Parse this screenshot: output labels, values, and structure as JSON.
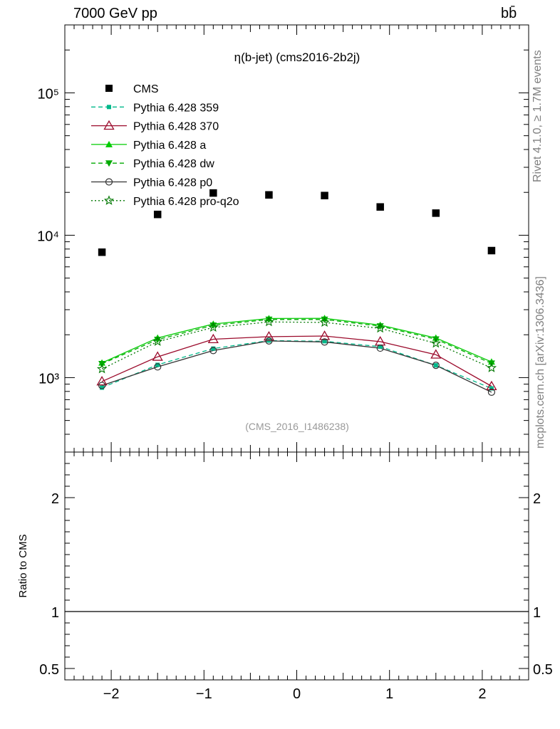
{
  "header": {
    "energy_label": "7000 GeV pp",
    "process_label": "bb̄"
  },
  "side_labels": {
    "rivet": "Rivet 4.1.0, ≥ 1.7M events",
    "mcplots": "mcplots.cern.ch [arXiv:1306.3436]"
  },
  "chart_data": [
    {
      "type": "scatter",
      "title": "η(b-jet) (cms2016-2b2j)",
      "watermark": "(CMS_2016_I1486238)",
      "xlabel": "",
      "ylabel": "",
      "xlim": [
        -2.5,
        2.5
      ],
      "ylim": [
        300,
        300000
      ],
      "yscale": "log",
      "yticks_major": [
        {
          "value": 1000,
          "label": "10³"
        },
        {
          "value": 10000,
          "label": "10⁴"
        },
        {
          "value": 100000,
          "label": "10⁵"
        }
      ],
      "x": [
        -2.1,
        -1.5,
        -0.9,
        -0.3,
        0.3,
        0.9,
        1.5,
        2.1
      ],
      "legend_position": "top-left",
      "series": [
        {
          "name": "CMS",
          "color": "#000000",
          "marker": "square",
          "line": "none",
          "values": [
            7600,
            14000,
            19800,
            19200,
            19000,
            15800,
            14300,
            7800
          ]
        },
        {
          "name": "Pythia 6.428 359",
          "color": "#00b88a",
          "marker": "small-square",
          "line": "dashed",
          "values": [
            850,
            1230,
            1600,
            1820,
            1800,
            1650,
            1220,
            840
          ]
        },
        {
          "name": "Pythia 6.428 370",
          "color": "#9b0a2b",
          "marker": "open-triangle",
          "line": "solid",
          "values": [
            940,
            1400,
            1860,
            1940,
            1960,
            1790,
            1450,
            870
          ]
        },
        {
          "name": "Pythia 6.428 a",
          "color": "#00cc00",
          "marker": "triangle",
          "line": "solid",
          "values": [
            1270,
            1900,
            2380,
            2600,
            2610,
            2340,
            1900,
            1290
          ]
        },
        {
          "name": "Pythia 6.428 dw",
          "color": "#00aa00",
          "marker": "triangle-down",
          "line": "dashed",
          "values": [
            1250,
            1850,
            2330,
            2560,
            2560,
            2300,
            1860,
            1260
          ]
        },
        {
          "name": "Pythia 6.428 p0",
          "color": "#333333",
          "marker": "open-circle",
          "line": "solid",
          "values": [
            880,
            1190,
            1550,
            1810,
            1780,
            1610,
            1220,
            790
          ]
        },
        {
          "name": "Pythia 6.428 pro-q2o",
          "color": "#007700",
          "marker": "open-star",
          "line": "dotted",
          "values": [
            1150,
            1790,
            2250,
            2460,
            2440,
            2220,
            1740,
            1170
          ]
        }
      ]
    },
    {
      "type": "line",
      "title": "",
      "xlabel": "",
      "ylabel": "Ratio to CMS",
      "xlim": [
        -2.5,
        2.5
      ],
      "ylim": [
        0.4,
        2.4
      ],
      "yticks_major": [
        {
          "value": 0.5,
          "label": "0.5"
        },
        {
          "value": 1,
          "label": "1"
        },
        {
          "value": 2,
          "label": "2"
        }
      ],
      "xticks_major": [
        {
          "value": -2,
          "label": "−2"
        },
        {
          "value": -1,
          "label": "−1"
        },
        {
          "value": 0,
          "label": "0"
        },
        {
          "value": 1,
          "label": "1"
        },
        {
          "value": 2,
          "label": "2"
        }
      ],
      "reference_line": 1
    }
  ]
}
